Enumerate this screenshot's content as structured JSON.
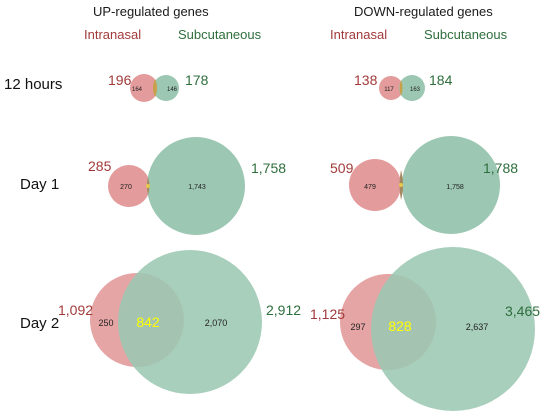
{
  "columns": [
    {
      "title": "UP-regulated genes",
      "left_label": "Intranasal",
      "right_label": "Subcutaneous"
    },
    {
      "title": "DOWN-regulated genes",
      "left_label": "Intranasal",
      "right_label": "Subcutaneous"
    }
  ],
  "rows": [
    {
      "label": "12 hours"
    },
    {
      "label": "Day 1"
    },
    {
      "label": "Day 2"
    }
  ],
  "colors": {
    "intranasal_fill": "#e39b9b",
    "subcutaneous_fill": "#9cc7b3",
    "overlap_fill": "#a5885f",
    "overlap_text": "#ffff00",
    "small_overlap_text": "#e6c84a"
  },
  "venns": [
    {
      "id": "up-12h",
      "intranasal_total": "196",
      "subcutaneous_total": "178",
      "intranasal_only": "164",
      "overlap": "",
      "subcutaneous_only": "146"
    },
    {
      "id": "down-12h",
      "intranasal_total": "138",
      "subcutaneous_total": "184",
      "intranasal_only": "117",
      "overlap": "",
      "subcutaneous_only": "163"
    },
    {
      "id": "up-d1",
      "intranasal_total": "285",
      "subcutaneous_total": "1,758",
      "intranasal_only": "270",
      "overlap": "",
      "subcutaneous_only": "1,743"
    },
    {
      "id": "down-d1",
      "intranasal_total": "509",
      "subcutaneous_total": "1,788",
      "intranasal_only": "479",
      "overlap": "",
      "subcutaneous_only": "1,758"
    },
    {
      "id": "up-d2",
      "intranasal_total": "1,092",
      "subcutaneous_total": "2,912",
      "intranasal_only": "250",
      "overlap": "842",
      "subcutaneous_only": "2,070"
    },
    {
      "id": "down-d2",
      "intranasal_total": "1,125",
      "subcutaneous_total": "3,465",
      "intranasal_only": "297",
      "overlap": "828",
      "subcutaneous_only": "2,637"
    }
  ]
}
